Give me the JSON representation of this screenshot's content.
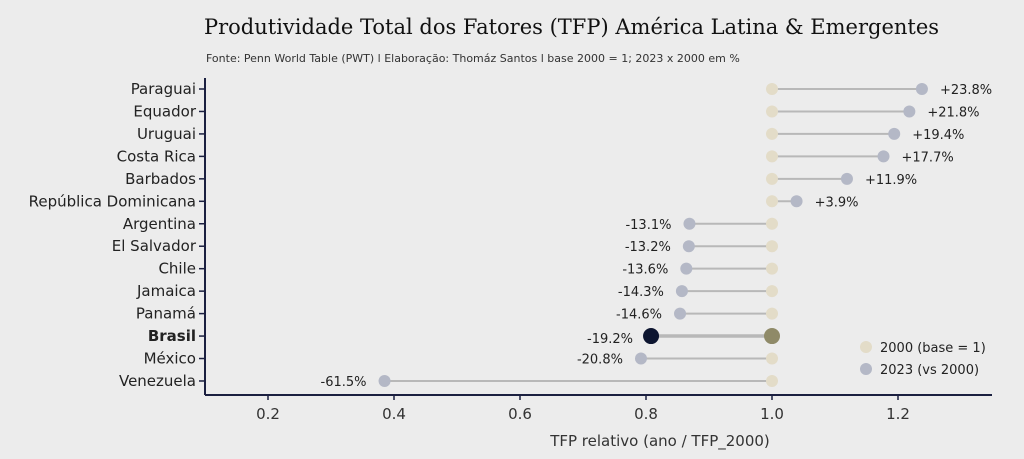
{
  "chart_data": {
    "type": "dumbbell",
    "title": "Produtividade Total dos Fatores (TFP) América Latina & Emergentes",
    "subtitle": "Fonte: Penn World Table (PWT) l Elaboração: Thomáz Santos l base 2000 = 1; 2023 x 2000 em %",
    "xlabel": "TFP relativo (ano / TFP_2000)",
    "xlim": [
      0.1,
      1.35
    ],
    "xticks": [
      "0.2",
      "0.4",
      "0.6",
      "0.8",
      "1.0",
      "1.2"
    ],
    "highlight": "Brasil",
    "categories": [
      "Paraguai",
      "Equador",
      "Uruguai",
      "Costa Rica",
      "Barbados",
      "República Dominicana",
      "Argentina",
      "El Salvador",
      "Chile",
      "Jamaica",
      "Panamá",
      "Brasil",
      "México",
      "Venezuela"
    ],
    "series": [
      {
        "name": "2000 (base = 1)",
        "color": "#e3dcc8",
        "values": [
          1,
          1,
          1,
          1,
          1,
          1,
          1,
          1,
          1,
          1,
          1,
          1,
          1,
          1
        ]
      },
      {
        "name": "2023 (vs 2000)",
        "color": "#b4b8c6",
        "values": [
          1.238,
          1.218,
          1.194,
          1.177,
          1.119,
          1.039,
          0.869,
          0.868,
          0.864,
          0.857,
          0.854,
          0.808,
          0.792,
          0.385
        ]
      }
    ],
    "labels": [
      "+23.8%",
      "+21.8%",
      "+19.4%",
      "+17.7%",
      "+11.9%",
      "+3.9%",
      "-13.1%",
      "-13.2%",
      "-13.6%",
      "-14.3%",
      "-14.6%",
      "-19.2%",
      "-20.8%",
      "-61.5%"
    ],
    "highlight_colors": {
      "base": "#8f8a68",
      "current": "#0d1530",
      "axis": "#1b2040",
      "line": "#b8b8b8"
    },
    "legend": "bottom-right"
  }
}
